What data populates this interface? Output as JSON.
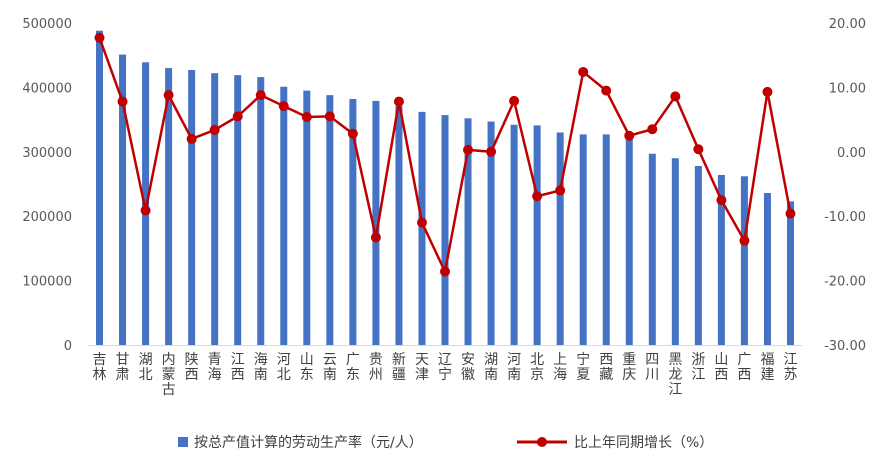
{
  "chart_data": {
    "type": "bar",
    "categories": [
      "吉林",
      "甘肃",
      "湖北",
      "内蒙古",
      "陕西",
      "青海",
      "江西",
      "海南",
      "河北",
      "山东",
      "云南",
      "广东",
      "贵州",
      "新疆",
      "天津",
      "辽宁",
      "安徽",
      "湖南",
      "河南",
      "北京",
      "上海",
      "宁夏",
      "西藏",
      "重庆",
      "四川",
      "黑龙江",
      "浙江",
      "山西",
      "广西",
      "福建",
      "江苏"
    ],
    "series": [
      {
        "name": "按总产值计算的劳动生产率（元/人）",
        "type": "bar",
        "axis": "left",
        "color": "#4472c4",
        "values": [
          488000,
          451000,
          439000,
          430000,
          427000,
          422000,
          419000,
          416000,
          401000,
          395000,
          388000,
          382000,
          379000,
          371000,
          362000,
          357000,
          352000,
          347000,
          342000,
          341000,
          330000,
          327000,
          327000,
          320000,
          297000,
          290000,
          278000,
          264000,
          262000,
          236000,
          223000
        ]
      },
      {
        "name": "比上年同期增长（%）",
        "type": "line",
        "axis": "right",
        "color": "#c00000",
        "values": [
          17.7,
          7.8,
          -9.1,
          8.8,
          2.0,
          3.4,
          5.5,
          8.8,
          7.1,
          5.4,
          5.5,
          2.8,
          -13.3,
          7.8,
          -11.0,
          -18.6,
          0.3,
          0.0,
          7.9,
          -6.9,
          -6.0,
          12.4,
          9.5,
          2.5,
          3.5,
          8.6,
          0.4,
          -7.5,
          -13.8,
          9.3,
          -9.6
        ]
      }
    ],
    "yleft": {
      "ylim": [
        0,
        500000
      ],
      "ticks": [
        "0",
        "100000",
        "200000",
        "300000",
        "400000",
        "500000"
      ]
    },
    "yright": {
      "ylim": [
        -30,
        20
      ],
      "ticks": [
        "-30.00",
        "-20.00",
        "-10.00",
        "0.00",
        "10.00",
        "20.00"
      ]
    },
    "grid": false,
    "legend_position": "bottom"
  }
}
